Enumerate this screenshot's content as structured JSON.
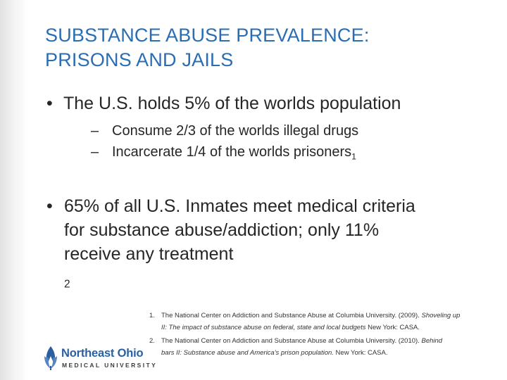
{
  "title": {
    "line1": "SUBSTANCE ABUSE PREVALENCE:",
    "line2": "PRISONS AND JAILS"
  },
  "bullets": {
    "b1": "The U.S. holds 5% of the worlds population",
    "b1_sub": [
      {
        "text": "Consume 2/3 of the worlds illegal drugs",
        "sup": ""
      },
      {
        "text": "Incarcerate 1/4 of the worlds prisoners",
        "sup": "1"
      }
    ],
    "b2_lines": [
      "65% of all U.S. Inmates meet medical criteria",
      "for substance abuse/addiction; only 11%",
      "receive any treatment"
    ],
    "b2_sub": "2"
  },
  "references": [
    {
      "num": "1.",
      "line1_plain": "The National Center on Addiction and Substance Abuse at Columbia University. (2009). ",
      "line1_italic": "Shoveling up",
      "line2_italic": "II: The impact of substance abuse on federal, state and local budgets",
      "line2_plain": " New York: CASA."
    },
    {
      "num": "2.",
      "line1_plain": "The National Center on Addiction and Substance Abuse at Columbia University. (2010). ",
      "line1_italic": "Behind",
      "line2_italic": "bars II: Substance abuse and America's prison population.",
      "line2_plain": " New York: CASA."
    }
  ],
  "logo": {
    "name": "Northeast Ohio",
    "subtitle": "MEDICAL UNIVERSITY"
  },
  "colors": {
    "title": "#2a6db3",
    "text": "#262626",
    "logo_blue": "#2a5fa0"
  },
  "icons": {
    "logo": "flame-leaf-logo-icon"
  }
}
